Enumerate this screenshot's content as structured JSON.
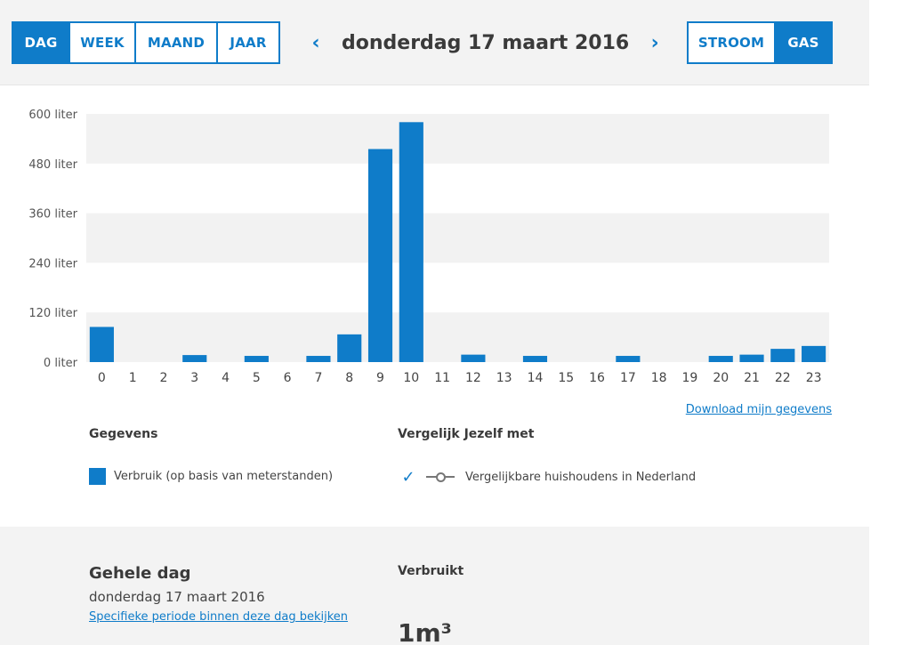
{
  "period_tabs": [
    {
      "label": "DAG",
      "active": true
    },
    {
      "label": "WEEK",
      "active": false
    },
    {
      "label": "MAAND",
      "active": false
    },
    {
      "label": "JAAR",
      "active": false
    }
  ],
  "energy_tabs": [
    {
      "label": "STROOM",
      "active": false
    },
    {
      "label": "GAS",
      "active": true
    }
  ],
  "date_nav": {
    "prev_icon": "chevron-left-icon",
    "next_icon": "chevron-right-icon",
    "prev_glyph": "‹",
    "next_glyph": "›",
    "title": "donderdag 17 maart 2016"
  },
  "chart_data": {
    "type": "bar",
    "categories": [
      "0",
      "1",
      "2",
      "3",
      "4",
      "5",
      "6",
      "7",
      "8",
      "9",
      "10",
      "11",
      "12",
      "13",
      "14",
      "15",
      "16",
      "17",
      "18",
      "19",
      "20",
      "21",
      "22",
      "23"
    ],
    "values": [
      85,
      0,
      0,
      17,
      0,
      15,
      0,
      15,
      67,
      515,
      580,
      0,
      18,
      0,
      15,
      0,
      0,
      15,
      0,
      0,
      15,
      18,
      32,
      39
    ],
    "yticks": [
      {
        "value": 0,
        "label": "0 liter"
      },
      {
        "value": 120,
        "label": "120 liter"
      },
      {
        "value": 240,
        "label": "240 liter"
      },
      {
        "value": 360,
        "label": "360 liter"
      },
      {
        "value": 480,
        "label": "480 liter"
      },
      {
        "value": 600,
        "label": "600 liter"
      }
    ],
    "ylim": [
      0,
      600
    ],
    "bar_color": "#0f7cc9",
    "band_color": "#f2f2f2",
    "grid": true
  },
  "download_label": "Download mijn gegevens",
  "legend": {
    "data_title": "Gegevens",
    "data_item": "Verbruik (op basis van meterstanden)",
    "compare_title": "Vergelijk Jezelf met",
    "compare_item": "Vergelijkbare huishoudens in Nederland",
    "check_glyph": "✓"
  },
  "summary": {
    "title": "Gehele dag",
    "date": "donderdag 17 maart 2016",
    "link": "Specifieke periode binnen deze dag bekijken",
    "used_label": "Verbruikt",
    "used_value": "1m³"
  },
  "colors": {
    "accent": "#0f7cc9",
    "panel_bg": "#f3f3f3",
    "text_dark": "#3a3a3a"
  }
}
